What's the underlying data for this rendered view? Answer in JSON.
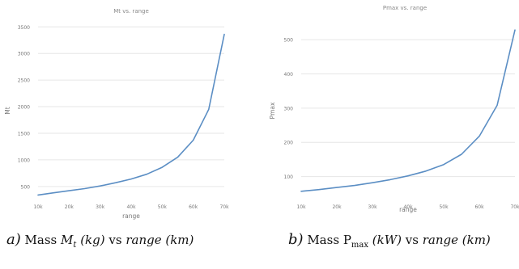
{
  "chart_data": [
    {
      "type": "line",
      "title": "Mt vs. range",
      "xlabel": "range",
      "ylabel": "Mt",
      "x_ticks": [
        "10k",
        "20k",
        "30k",
        "40k",
        "50k",
        "60k",
        "70k"
      ],
      "y_ticks": [
        "500",
        "1000",
        "1500",
        "2000",
        "2500",
        "3000",
        "3500"
      ],
      "xlim": [
        10000,
        70000
      ],
      "ylim": [
        300,
        3550
      ],
      "grid": "horizontal",
      "color": "#5b8ec4",
      "x": [
        10000,
        15000,
        20000,
        25000,
        30000,
        35000,
        40000,
        45000,
        50000,
        55000,
        60000,
        65000,
        70000
      ],
      "values": [
        340,
        380,
        420,
        460,
        510,
        570,
        640,
        730,
        860,
        1050,
        1370,
        1950,
        3360
      ]
    },
    {
      "type": "line",
      "title": "Pmax vs. range",
      "xlabel": "range",
      "ylabel": "Pmax",
      "x_ticks": [
        "10k",
        "20k",
        "30k",
        "40k",
        "50k",
        "60k",
        "70k"
      ],
      "y_ticks": [
        "100",
        "200",
        "300",
        "400",
        "500"
      ],
      "xlim": [
        10000,
        70000
      ],
      "ylim": [
        40,
        545
      ],
      "grid": "horizontal",
      "color": "#5b8ec4",
      "x": [
        10000,
        15000,
        20000,
        25000,
        30000,
        35000,
        40000,
        45000,
        50000,
        55000,
        60000,
        65000,
        70000
      ],
      "values": [
        57,
        62,
        68,
        74,
        82,
        91,
        102,
        116,
        135,
        165,
        218,
        308,
        528
      ]
    }
  ],
  "captions": {
    "a": {
      "letter": "a)",
      "pre": "Mass",
      "sym": "M",
      "sub": "t",
      "unit": "(kg)",
      "vs": "vs",
      "var": "range (km)"
    },
    "b": {
      "letter": "b)",
      "pre": "Mass",
      "sym": "P",
      "sub": "max",
      "unit": "(kW)",
      "vs": "vs",
      "var": "range (km)"
    }
  }
}
